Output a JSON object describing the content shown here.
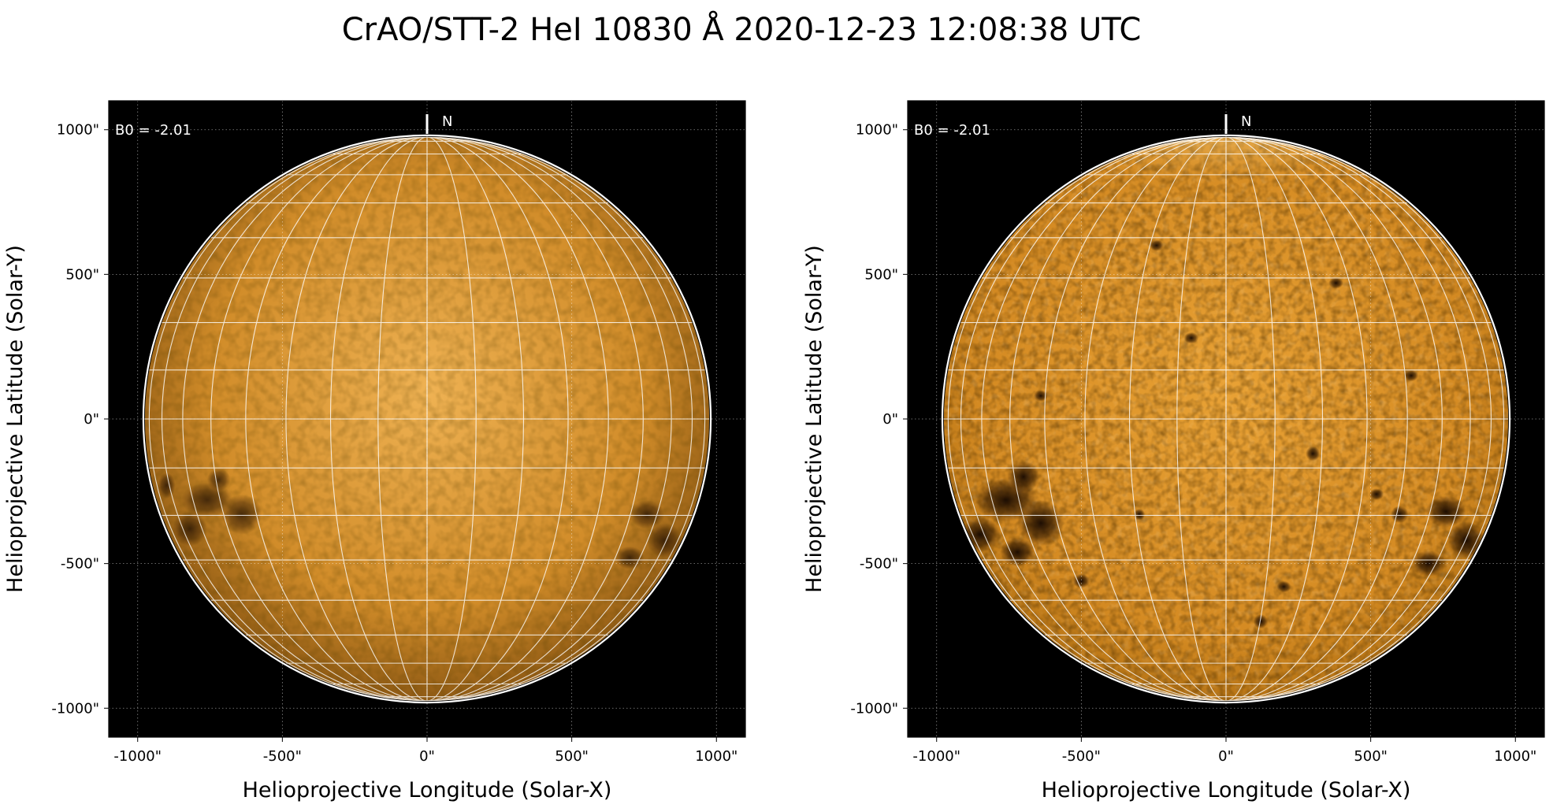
{
  "figure": {
    "title": "CrAO/STT-2 HeI 10830 Å 2020-12-23 12:08:38 UTC"
  },
  "panels": [
    {
      "id": "left",
      "b0_label": "B0 = -2.01",
      "north_label": "N",
      "xlabel": "Helioprojective Longitude (Solar-X)",
      "ylabel": "Helioprojective Latitude (Solar-Y)",
      "xticks": [
        "-1000\"",
        "-500\"",
        "0\"",
        "500\"",
        "1000\""
      ],
      "yticks": [
        "1000\"",
        "500\"",
        "0\"",
        "-500\"",
        "-1000\""
      ],
      "contrast": "low",
      "disk_color_center": "#e7a13e",
      "disk_color_limb": "#8f5a14"
    },
    {
      "id": "right",
      "b0_label": "B0 = -2.01",
      "north_label": "N",
      "xlabel": "Helioprojective Longitude (Solar-X)",
      "ylabel": "Helioprojective Latitude (Solar-Y)",
      "xticks": [
        "-1000\"",
        "-500\"",
        "0\"",
        "500\"",
        "1000\""
      ],
      "yticks": [
        "1000\"",
        "500\"",
        "0\"",
        "-500\"",
        "-1000\""
      ],
      "contrast": "high",
      "disk_color_center": "#e29a2e",
      "disk_color_limb": "#b77415"
    }
  ],
  "colors": {
    "background": "#000000",
    "grid": "#ffffff",
    "limb": "#ffffff"
  },
  "axis": {
    "range_arcsec": [
      -1100,
      1100
    ],
    "tick_values": [
      -1000,
      -500,
      0,
      500,
      1000
    ],
    "solar_radius_arcsec": 975,
    "grid_spacing_deg": 10
  }
}
